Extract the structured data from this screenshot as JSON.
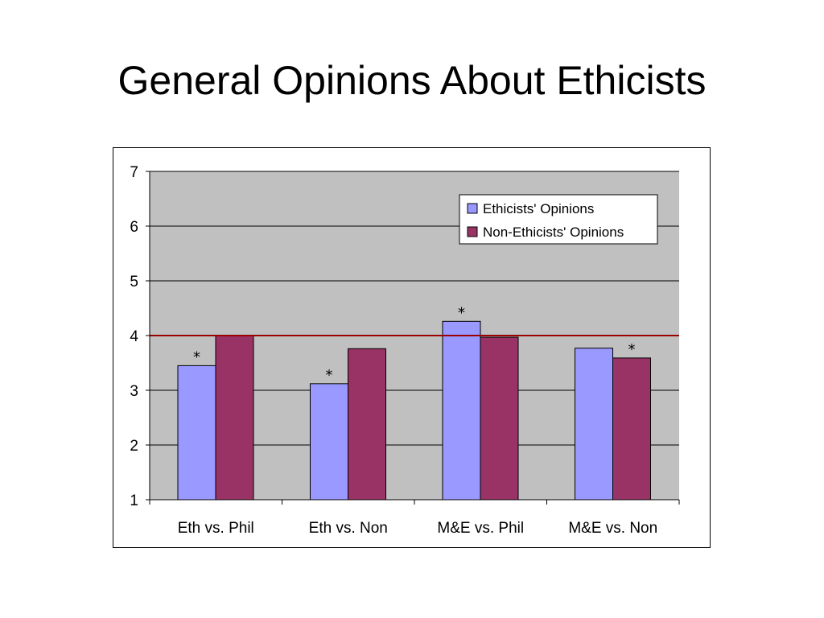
{
  "slide": {
    "title": "General Opinions About Ethicists"
  },
  "colors": {
    "plot_background": "#c0c0c0",
    "ethicists": "#9999ff",
    "non_ethicists": "#993366",
    "reference_line": "#990000",
    "gridline": "#000000"
  },
  "chart_data": {
    "type": "bar",
    "title": "",
    "xlabel": "",
    "ylabel": "",
    "categories": [
      "Eth vs. Phil",
      "Eth vs. Non",
      "M&E vs. Phil",
      "M&E vs. Non"
    ],
    "series": [
      {
        "name": "Ethicists' Opinions",
        "values": [
          3.45,
          3.12,
          4.26,
          3.77
        ],
        "color": "#9999ff"
      },
      {
        "name": "Non-Ethicists' Opinions",
        "values": [
          4.0,
          3.76,
          3.97,
          3.59
        ],
        "color": "#993366"
      }
    ],
    "ylim": [
      1,
      7
    ],
    "yticks": [
      1,
      2,
      3,
      4,
      5,
      6,
      7
    ],
    "grid": true,
    "legend_position": "top-right",
    "reference_line": {
      "value": 4,
      "color": "#990000"
    },
    "annotations": [
      {
        "text": "*",
        "category": "Eth vs. Phil",
        "series": "Ethicists' Opinions"
      },
      {
        "text": "*",
        "category": "Eth vs. Non",
        "series": "Ethicists' Opinions"
      },
      {
        "text": "*",
        "category": "M&E vs. Phil",
        "series": "Ethicists' Opinions"
      },
      {
        "text": "*",
        "category": "M&E vs. Non",
        "series": "Non-Ethicists' Opinions"
      }
    ]
  }
}
